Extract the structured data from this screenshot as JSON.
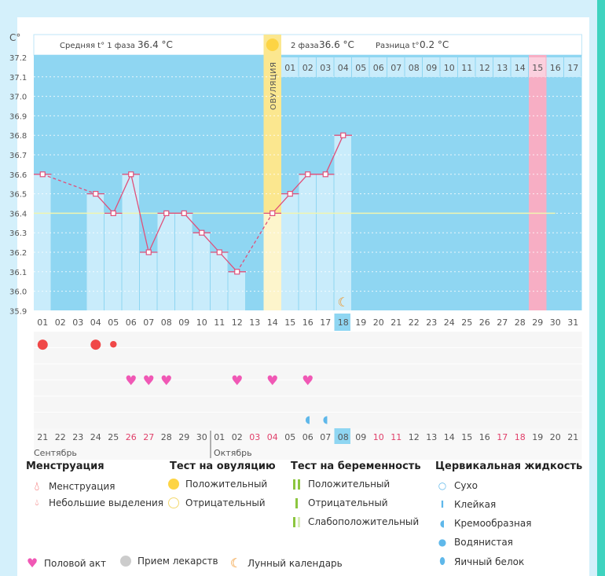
{
  "unit": "C°",
  "header": {
    "phase1_label": "Средняя t° 1 фаза",
    "phase1_value": "36.4 °C",
    "phase2_label": "2 фаза",
    "phase2_value": "36.6 °C",
    "diff_label": "Разница t°",
    "diff_value": "0.2 °C",
    "ovulation_label": "ОВУЛЯЦИЯ"
  },
  "chart_data": {
    "type": "line",
    "yticks": [
      "37.2",
      "37.1",
      "37.0",
      "36.9",
      "36.8",
      "36.7",
      "36.6",
      "36.5",
      "36.4",
      "36.3",
      "36.2",
      "36.1",
      "36.0",
      "35.9"
    ],
    "ylim": [
      35.9,
      37.2
    ],
    "x": [
      "01",
      "02",
      "03",
      "04",
      "05",
      "06",
      "07",
      "08",
      "09",
      "10",
      "11",
      "12",
      "13",
      "14",
      "15",
      "16",
      "17",
      "18",
      "19",
      "20",
      "21",
      "22",
      "23",
      "24",
      "25",
      "26",
      "27",
      "28",
      "29",
      "30",
      "31"
    ],
    "temps": [
      36.6,
      null,
      null,
      36.5,
      36.4,
      36.6,
      36.2,
      36.4,
      36.4,
      36.3,
      36.2,
      36.1,
      null,
      36.4,
      36.5,
      36.6,
      36.6,
      36.8,
      null,
      null,
      null,
      null,
      null,
      null,
      null,
      null,
      null,
      null,
      null,
      null,
      null
    ],
    "coverline": 36.4,
    "ovulation_day": 14,
    "highlight_day": 18,
    "predicted_period_day": 29,
    "phase2_days": [
      "01",
      "02",
      "03",
      "04",
      "05",
      "06",
      "07",
      "08",
      "09",
      "10",
      "11",
      "12",
      "13",
      "14",
      "15",
      "16",
      "17"
    ],
    "phase2_highlight": "15",
    "moon_day": 18
  },
  "events": {
    "menstruation": [
      1,
      4
    ],
    "spotting": [
      5
    ],
    "intercourse": [
      6,
      7,
      8,
      12,
      14,
      16
    ],
    "cervical_creamy": [
      16,
      17
    ]
  },
  "dates": {
    "values": [
      "21",
      "22",
      "23",
      "24",
      "25",
      "26",
      "27",
      "28",
      "29",
      "30",
      "01",
      "02",
      "03",
      "04",
      "05",
      "06",
      "07",
      "08",
      "09",
      "10",
      "11",
      "12",
      "13",
      "14",
      "15",
      "16",
      "17",
      "18",
      "19",
      "20",
      "21"
    ],
    "red": [
      6,
      7,
      13,
      14,
      20,
      21,
      27,
      28
    ],
    "month1": "Сентябрь",
    "month2": "Октябрь"
  },
  "colors": {
    "plot": "#8fd6f2",
    "bar": "#c9ecfb",
    "line": "#e0507a",
    "cover": "#f0f5b0",
    "ovulation": "#fbe78f",
    "period": "#f7aec4",
    "heart": "#f058b5",
    "blood": "#f04848",
    "drop": "#5fb8ea"
  },
  "legend": {
    "menstruation": {
      "title": "Менструация",
      "items": [
        "Менструация",
        "Небольшие выделения"
      ]
    },
    "ovulation_test": {
      "title": "Тест на овуляцию",
      "items": [
        "Положительный",
        "Отрицательный"
      ]
    },
    "pregnancy_test": {
      "title": "Тест на беременность",
      "items": [
        "Положительный",
        "Отрицательный",
        "Слабоположительный"
      ]
    },
    "cervical": {
      "title": "Цервикальная жидкость",
      "items": [
        "Сухо",
        "Клейкая",
        "Кремообразная",
        "Водянистая",
        "Яичный белок"
      ]
    },
    "other": [
      "Половой акт",
      "Прием лекарств",
      "Лунный календарь"
    ]
  }
}
